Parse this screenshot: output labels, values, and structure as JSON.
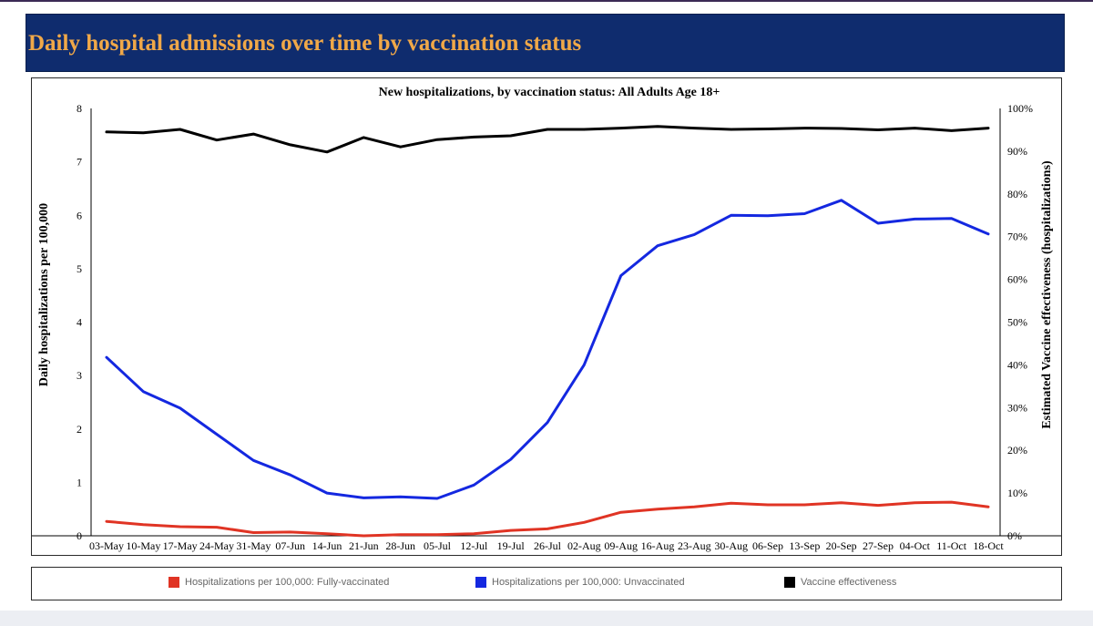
{
  "header": {
    "title": "Daily hospital admissions over time by vaccination status"
  },
  "colors": {
    "header_bg": "#0f2c6e",
    "header_text": "#f0a848",
    "fully_vaccinated": "#e03424",
    "unvaccinated": "#1428e0",
    "effectiveness": "#000000"
  },
  "chart_data": {
    "type": "line",
    "title": "New hospitalizations, by vaccination status: All Adults Age 18+",
    "ylabel": "Daily hospitalizations per 100,000",
    "y2label": "Estimated Vaccine effectiveness (hospitalizations)",
    "ylim": [
      0,
      8
    ],
    "y2lim": [
      0,
      100
    ],
    "yticks": [
      "0",
      "1",
      "2",
      "3",
      "4",
      "5",
      "6",
      "7",
      "8"
    ],
    "y2ticks": [
      "0%",
      "10%",
      "20%",
      "30%",
      "40%",
      "50%",
      "60%",
      "70%",
      "80%",
      "90%",
      "100%"
    ],
    "categories": [
      "03-May",
      "10-May",
      "17-May",
      "24-May",
      "31-May",
      "07-Jun",
      "14-Jun",
      "21-Jun",
      "28-Jun",
      "05-Jul",
      "12-Jul",
      "19-Jul",
      "26-Jul",
      "02-Aug",
      "09-Aug",
      "16-Aug",
      "23-Aug",
      "30-Aug",
      "06-Sep",
      "13-Sep",
      "20-Sep",
      "27-Sep",
      "04-Oct",
      "11-Oct",
      "18-Oct"
    ],
    "series": [
      {
        "name": "Hospitalizations per 100,000: Fully-vaccinated",
        "axis": "left",
        "color": "#e03424",
        "values": [
          0.27,
          0.21,
          0.17,
          0.16,
          0.06,
          0.07,
          0.04,
          0.0,
          0.02,
          0.02,
          0.04,
          0.1,
          0.13,
          0.25,
          0.44,
          0.5,
          0.54,
          0.61,
          0.58,
          0.58,
          0.62,
          0.57,
          0.62,
          0.63,
          0.54
        ]
      },
      {
        "name": "Hospitalizations per 100,000: Unvaccinated",
        "axis": "left",
        "color": "#1428e0",
        "values": [
          3.34,
          2.7,
          2.39,
          1.9,
          1.41,
          1.14,
          0.8,
          0.71,
          0.73,
          0.7,
          0.95,
          1.43,
          2.12,
          3.2,
          4.87,
          5.43,
          5.64,
          6.0,
          5.99,
          6.03,
          6.28,
          5.85,
          5.93,
          5.94,
          5.65
        ]
      },
      {
        "name": "Vaccine effectiveness",
        "axis": "right",
        "color": "#000000",
        "values": [
          94.5,
          94.3,
          95.1,
          92.6,
          94.0,
          91.5,
          89.8,
          93.2,
          91.0,
          92.7,
          93.3,
          93.6,
          95.1,
          95.1,
          95.4,
          95.8,
          95.4,
          95.1,
          95.2,
          95.4,
          95.3,
          95.0,
          95.4,
          94.8,
          95.4
        ]
      }
    ],
    "legend_position": "bottom"
  }
}
